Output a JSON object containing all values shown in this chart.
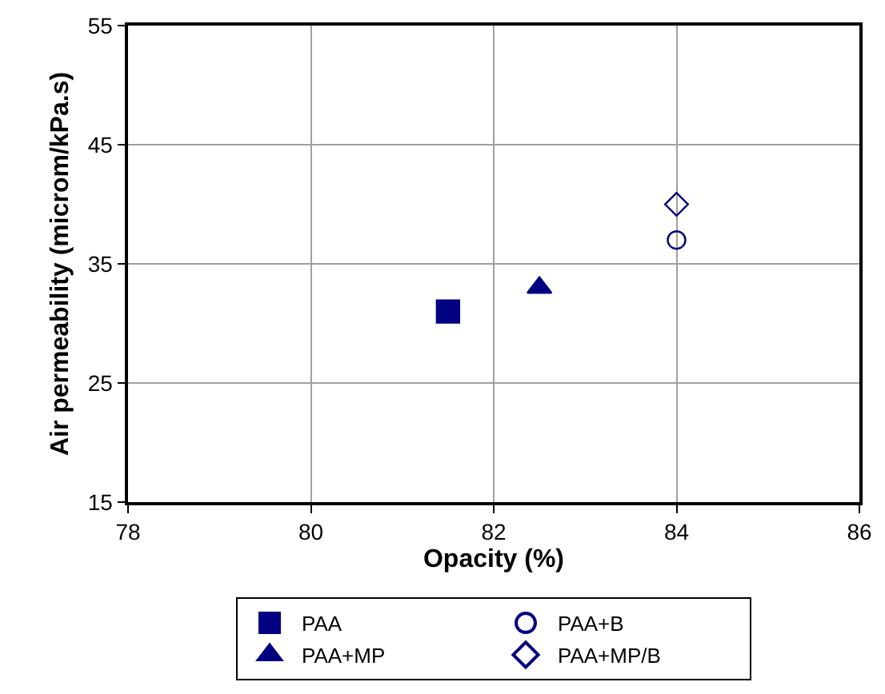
{
  "chart_data": {
    "type": "scatter",
    "xlabel": "Opacity (%)",
    "ylabel": "Air permeability (microm/kPa.s)",
    "xlim": [
      78,
      86
    ],
    "xticks": [
      78,
      80,
      82,
      84,
      86
    ],
    "ylim": [
      15,
      55
    ],
    "yticks": [
      15,
      25,
      35,
      45,
      55
    ],
    "grid": true,
    "legend": "bottom",
    "series": [
      {
        "name": "PAA",
        "color": "#000080",
        "marker": "square",
        "x": [
          81.5
        ],
        "values": [
          31
        ]
      },
      {
        "name": "PAA+B",
        "color": "#000080",
        "marker": "circle-open",
        "x": [
          84
        ],
        "values": [
          37
        ]
      },
      {
        "name": "PAA+MP",
        "color": "#000080",
        "marker": "triangle",
        "x": [
          82.5
        ],
        "values": [
          33
        ]
      },
      {
        "name": "PAA+MP/B",
        "color": "#000080",
        "marker": "diamond-open",
        "x": [
          84
        ],
        "values": [
          40
        ]
      }
    ]
  }
}
